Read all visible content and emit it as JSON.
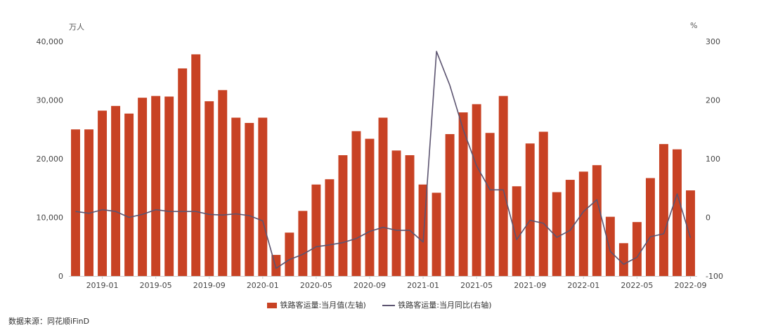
{
  "units": {
    "left": "万人",
    "right": "%"
  },
  "source": "数据来源：同花顺iFinD",
  "colors": {
    "bar": "#c84224",
    "line": "#5c5470",
    "axis": "#cccccc",
    "tick": "#444444"
  },
  "chart_data": {
    "type": "bar",
    "x": [
      "2018-11",
      "2018-12",
      "2019-01",
      "2019-02",
      "2019-03",
      "2019-04",
      "2019-05",
      "2019-06",
      "2019-07",
      "2019-08",
      "2019-09",
      "2019-10",
      "2019-11",
      "2019-12",
      "2020-01",
      "2020-02",
      "2020-03",
      "2020-04",
      "2020-05",
      "2020-06",
      "2020-07",
      "2020-08",
      "2020-09",
      "2020-10",
      "2020-11",
      "2020-12",
      "2021-01",
      "2021-02",
      "2021-03",
      "2021-04",
      "2021-05",
      "2021-06",
      "2021-07",
      "2021-08",
      "2021-09",
      "2021-10",
      "2021-11",
      "2021-12",
      "2022-01",
      "2022-02",
      "2022-03",
      "2022-04",
      "2022-05",
      "2022-06",
      "2022-07",
      "2022-08",
      "2022-09"
    ],
    "x_tick_labels": [
      "2019-01",
      "2019-05",
      "2019-09",
      "2020-01",
      "2020-05",
      "2020-09",
      "2021-01",
      "2021-05",
      "2021-09",
      "2022-01",
      "2022-05",
      "2022-09"
    ],
    "series": [
      {
        "name": "铁路客运量:当月值(左轴)",
        "type": "bar",
        "axis": "left",
        "values": [
          25000,
          25000,
          28200,
          29000,
          27700,
          30400,
          30700,
          30600,
          35400,
          37800,
          29800,
          31700,
          27000,
          26100,
          27000,
          3600,
          7400,
          11100,
          15600,
          16500,
          20600,
          24700,
          23400,
          27000,
          21400,
          20600,
          15600,
          14200,
          24200,
          27900,
          29300,
          24400,
          30700,
          15300,
          22600,
          24600,
          14300,
          16400,
          17800,
          18900,
          10100,
          5600,
          9200,
          16700,
          22500,
          21600,
          14600
        ]
      },
      {
        "name": "铁路客运量:当月同比(右轴)",
        "type": "line",
        "axis": "right",
        "values": [
          10,
          7,
          13,
          10,
          0,
          5,
          13,
          10,
          10,
          10,
          5,
          4,
          6,
          3,
          -6,
          -87,
          -72,
          -63,
          -50,
          -47,
          -43,
          -36,
          -24,
          -17,
          -22,
          -22,
          -42,
          283,
          225,
          150,
          88,
          47,
          47,
          -38,
          -5,
          -10,
          -34,
          -22,
          10,
          30,
          -58,
          -80,
          -68,
          -33,
          -28,
          40,
          -35
        ]
      }
    ],
    "left_axis": {
      "ylim": [
        0,
        40000
      ],
      "ticks": [
        "0",
        "10,000",
        "20,000",
        "30,000",
        "40,000"
      ]
    },
    "right_axis": {
      "ylim": [
        -100,
        300
      ],
      "ticks": [
        "-100",
        "0",
        "100",
        "200",
        "300"
      ]
    },
    "legend_position": "bottom-center"
  }
}
